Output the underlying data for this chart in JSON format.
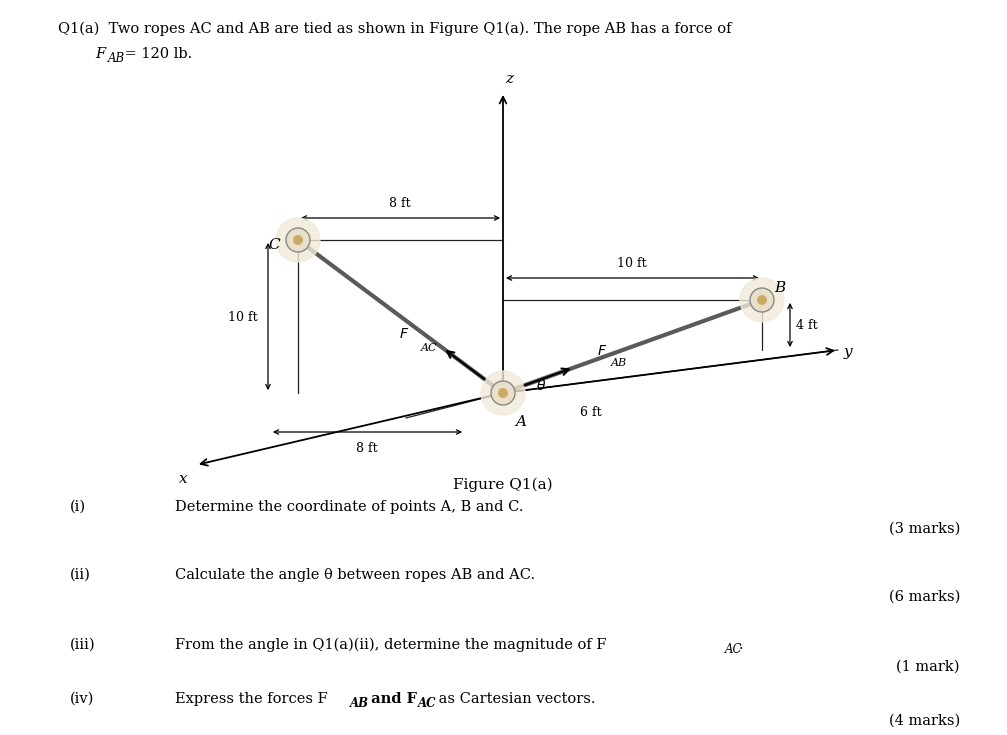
{
  "bg_color": "#ffffff",
  "title_line1": "Q1(a)  Two ropes AC and AB are tied as shown in Figure Q1(a). The rope AB has a force of",
  "title_line2_F": "F",
  "title_line2_sub": "AB",
  "title_line2_rest": " = 120 lb.",
  "fig_caption": "Figure Q1(a)",
  "q1_num": "(i)",
  "q1_text": "Determine the coordinate of points A, B and C.",
  "q1_marks": "(3 marks)",
  "q2_num": "(ii)",
  "q2_text": "Calculate the angle θ between ropes AB and AC.",
  "q2_marks": "(6 marks)",
  "q3_num": "(iii)",
  "q3_text": "From the angle in Q1(a)(ii), determine the magnitude of F",
  "q3_sub": "AC",
  "q3_period": ".",
  "q3_marks": "(1 mark)",
  "q4_num": "(iv)",
  "q4_text1": "Express the forces F",
  "q4_sub1": "AB",
  "q4_text2": " and F",
  "q4_sub2": "AC",
  "q4_text3": " as Cartesian vectors.",
  "q4_marks": "(4 marks)",
  "node_color": "#e8e0c8",
  "node_glow": "#f5f0e0",
  "rope_color": "#5a5a5a",
  "line_color": "#222222",
  "dim_color": "#222222"
}
